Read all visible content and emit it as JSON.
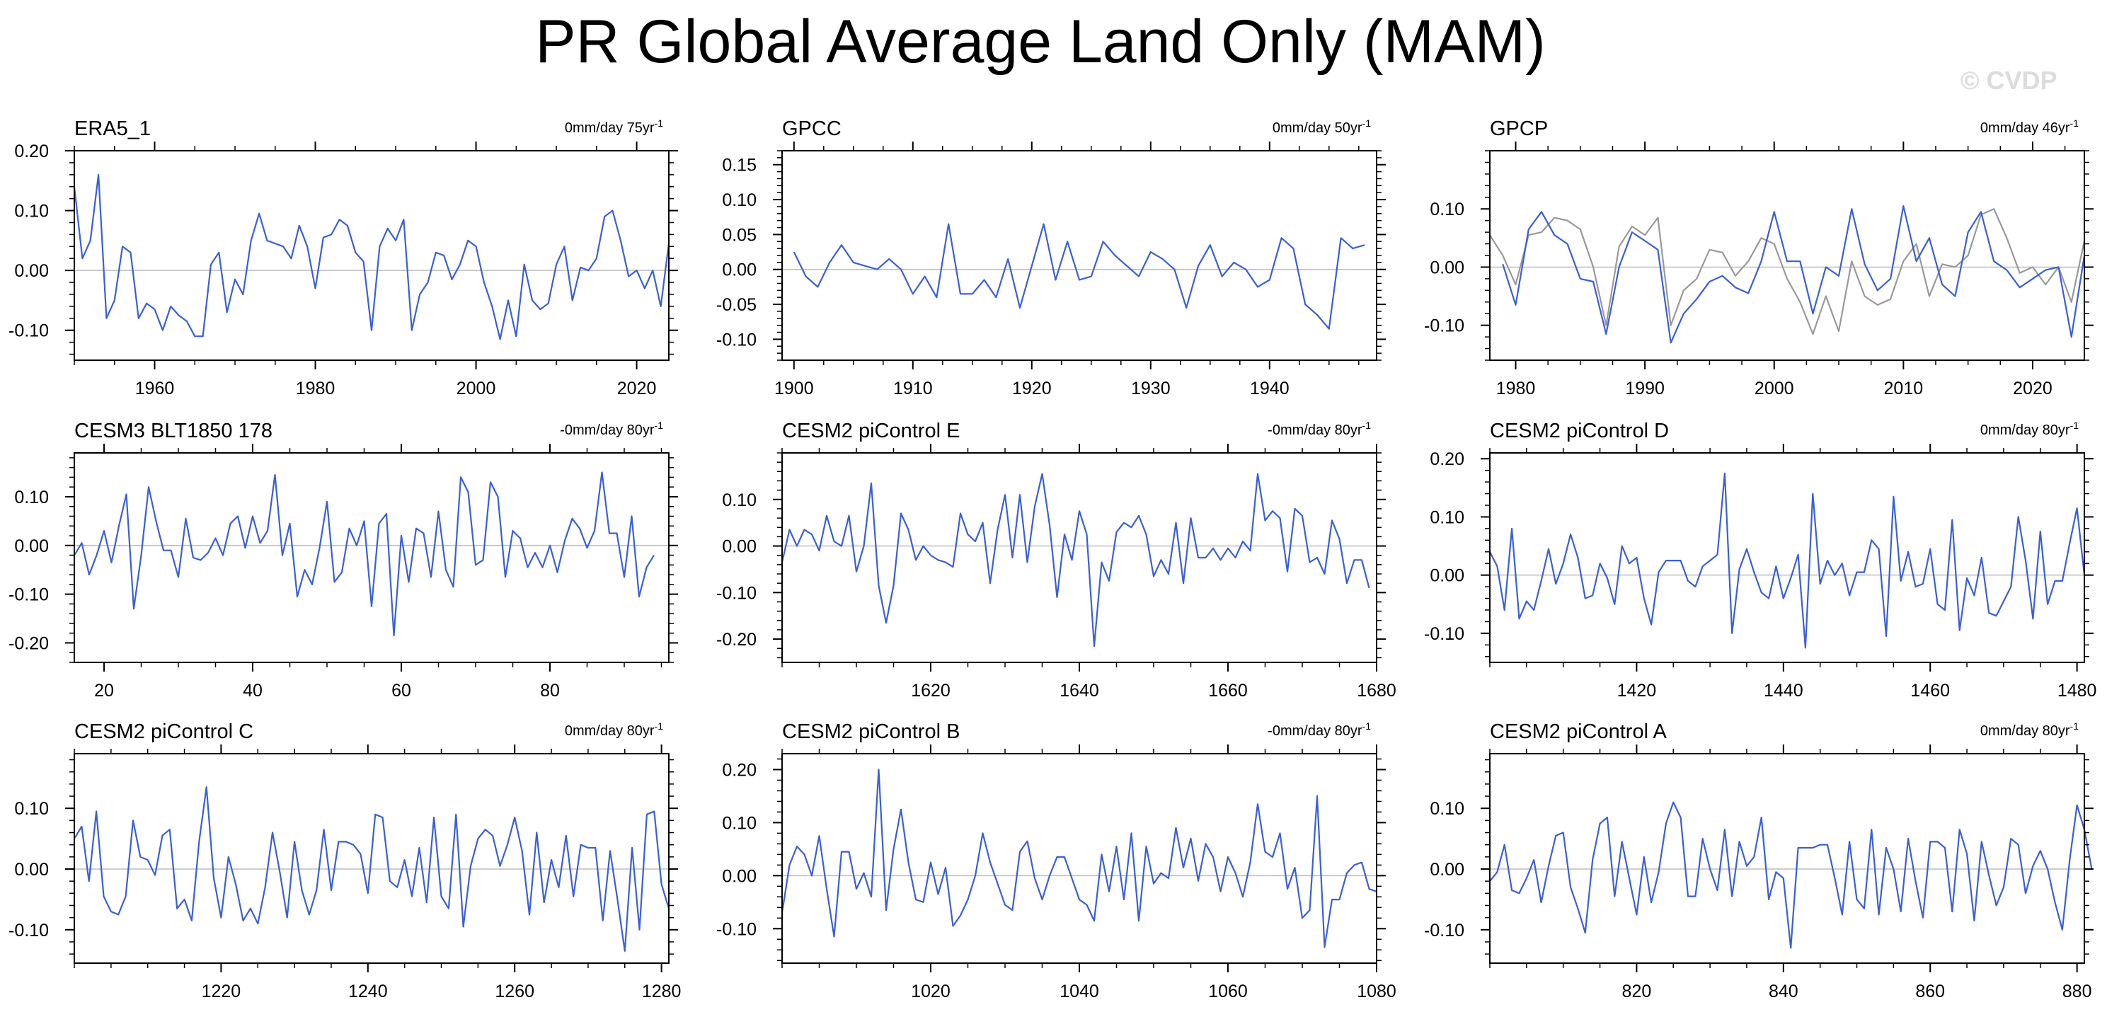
{
  "figure": {
    "title": "PR Global Average Land Only (MAM)",
    "watermark": "© CVDP"
  },
  "colors": {
    "primary_line": "#3a5fd6",
    "secondary_line": "#999999",
    "zero_line": "#bdbdbd",
    "axis": "#000000"
  },
  "chart_data": [
    {
      "type": "line",
      "title": "ERA5_1",
      "trend_label": "0mm/day 75yr",
      "trend_unit_exp": "-1",
      "xlim": [
        1950,
        2024
      ],
      "ylim": [
        -0.15,
        0.2
      ],
      "xticks": [
        1960,
        1980,
        2000,
        2020
      ],
      "yticks": [
        -0.1,
        0.0,
        0.1,
        0.2
      ],
      "ytick_labels": [
        "-0.10",
        "0.00",
        "0.10",
        "0.20"
      ],
      "series": [
        {
          "x_start": 1950,
          "values": [
            0.14,
            0.02,
            0.05,
            0.16,
            -0.08,
            -0.05,
            0.04,
            0.03,
            -0.08,
            -0.055,
            -0.065,
            -0.1,
            -0.06,
            -0.075,
            -0.085,
            -0.11,
            -0.11,
            0.01,
            0.03,
            -0.07,
            -0.015,
            -0.04,
            0.05,
            0.095,
            0.05,
            0.045,
            0.04,
            0.02,
            0.075,
            0.04,
            -0.03,
            0.055,
            0.06,
            0.085,
            0.075,
            0.03,
            0.015,
            -0.1,
            0.04,
            0.07,
            0.05,
            0.085,
            -0.1,
            -0.04,
            -0.02,
            0.03,
            0.025,
            -0.015,
            0.01,
            0.05,
            0.04,
            -0.02,
            -0.06,
            -0.115,
            -0.05,
            -0.11,
            0.01,
            -0.05,
            -0.065,
            -0.055,
            0.01,
            0.04,
            -0.05,
            0.005,
            0.0,
            0.02,
            0.09,
            0.1,
            0.05,
            -0.01,
            0.0,
            -0.03,
            0.0,
            -0.06,
            0.045
          ]
        }
      ]
    },
    {
      "type": "line",
      "title": "GPCC",
      "trend_label": "0mm/day 50yr",
      "trend_unit_exp": "-1",
      "xlim": [
        1899,
        1949
      ],
      "ylim": [
        -0.13,
        0.17
      ],
      "xticks": [
        1900,
        1910,
        1920,
        1930,
        1940
      ],
      "yticks": [
        -0.1,
        -0.05,
        0.0,
        0.05,
        0.1,
        0.15
      ],
      "ytick_labels": [
        "-0.10",
        "-0.05",
        "0.00",
        "0.05",
        "0.10",
        "0.15"
      ],
      "series": [
        {
          "x_start": 1900,
          "values": [
            0.025,
            -0.01,
            -0.025,
            0.01,
            0.035,
            0.01,
            0.005,
            0.0,
            0.015,
            0.0,
            -0.035,
            -0.01,
            -0.04,
            0.065,
            -0.035,
            -0.035,
            -0.015,
            -0.04,
            0.015,
            -0.055,
            0.005,
            0.065,
            -0.015,
            0.04,
            -0.015,
            -0.01,
            0.04,
            0.02,
            0.005,
            -0.01,
            0.025,
            0.015,
            0.0,
            -0.055,
            0.005,
            0.035,
            -0.01,
            0.01,
            0.0,
            -0.025,
            -0.015,
            0.045,
            0.03,
            -0.05,
            -0.065,
            -0.085,
            0.045,
            0.03,
            0.035
          ]
        }
      ]
    },
    {
      "type": "line",
      "title": "GPCP",
      "trend_label": "0mm/day 46yr",
      "trend_unit_exp": "-1",
      "xlim": [
        1978,
        2024
      ],
      "ylim": [
        -0.16,
        0.2
      ],
      "xticks": [
        1980,
        1990,
        2000,
        2010,
        2020
      ],
      "yticks": [
        -0.1,
        0.0,
        0.1
      ],
      "ytick_labels": [
        "-0.10",
        "0.00",
        "0.10"
      ],
      "series": [
        {
          "x_start": 1979,
          "values": [
            0.005,
            -0.065,
            0.065,
            0.095,
            0.055,
            0.04,
            -0.02,
            -0.025,
            -0.115,
            0.0,
            0.06,
            0.045,
            0.03,
            -0.13,
            -0.08,
            -0.055,
            -0.025,
            -0.015,
            -0.035,
            -0.045,
            0.01,
            0.095,
            0.01,
            0.01,
            -0.08,
            0.0,
            -0.015,
            0.1,
            0.005,
            -0.04,
            -0.02,
            0.105,
            0.01,
            0.05,
            -0.03,
            -0.05,
            0.06,
            0.095,
            0.01,
            -0.005,
            -0.035,
            -0.02,
            -0.005,
            0.0,
            -0.12,
            0.02
          ]
        },
        {
          "x_start": 1978,
          "values": [
            0.055,
            0.02,
            -0.03,
            0.055,
            0.06,
            0.085,
            0.08,
            0.065,
            0.0,
            -0.1,
            0.035,
            0.07,
            0.055,
            0.085,
            -0.1,
            -0.04,
            -0.02,
            0.03,
            0.025,
            -0.015,
            0.01,
            0.05,
            0.04,
            -0.02,
            -0.06,
            -0.115,
            -0.05,
            -0.11,
            0.01,
            -0.05,
            -0.065,
            -0.055,
            0.01,
            0.04,
            -0.05,
            0.005,
            0.0,
            0.02,
            0.09,
            0.1,
            0.05,
            -0.01,
            0.0,
            -0.03,
            0.0,
            -0.06,
            0.045
          ]
        }
      ]
    },
    {
      "type": "line",
      "title": "CESM3 BLT1850 178",
      "trend_label": "-0mm/day 80yr",
      "trend_unit_exp": "-1",
      "xlim": [
        16,
        96
      ],
      "ylim": [
        -0.24,
        0.19
      ],
      "xticks": [
        20,
        40,
        60,
        80
      ],
      "yticks": [
        -0.2,
        -0.1,
        0.0,
        0.1
      ],
      "ytick_labels": [
        "-0.20",
        "-0.10",
        "0.00",
        "0.10"
      ],
      "series": [
        {
          "x_start": 16,
          "values": [
            -0.02,
            0.005,
            -0.06,
            -0.02,
            0.03,
            -0.035,
            0.04,
            0.105,
            -0.13,
            -0.02,
            0.12,
            0.05,
            -0.01,
            -0.01,
            -0.065,
            0.055,
            -0.025,
            -0.03,
            -0.015,
            0.015,
            -0.02,
            0.045,
            0.06,
            -0.005,
            0.06,
            0.005,
            0.03,
            0.145,
            -0.02,
            0.045,
            -0.105,
            -0.05,
            -0.08,
            -0.005,
            0.09,
            -0.075,
            -0.055,
            0.035,
            0.0,
            0.05,
            -0.125,
            0.045,
            0.065,
            -0.185,
            0.02,
            -0.075,
            0.035,
            0.025,
            -0.065,
            0.07,
            -0.05,
            -0.085,
            0.14,
            0.11,
            -0.04,
            -0.03,
            0.13,
            0.1,
            -0.065,
            0.03,
            0.015,
            -0.045,
            -0.015,
            -0.045,
            0.0,
            -0.055,
            0.01,
            0.055,
            0.035,
            -0.005,
            0.03,
            0.15,
            0.025,
            0.025,
            -0.065,
            0.06,
            -0.105,
            -0.045,
            -0.02
          ]
        }
      ]
    },
    {
      "type": "line",
      "title": "CESM2 piControl E",
      "trend_label": "-0mm/day 80yr",
      "trend_unit_exp": "-1",
      "xlim": [
        1600,
        1680
      ],
      "ylim": [
        -0.25,
        0.2
      ],
      "xticks": [
        1620,
        1640,
        1660,
        1680
      ],
      "yticks": [
        -0.2,
        -0.1,
        0.0,
        0.1
      ],
      "ytick_labels": [
        "-0.20",
        "-0.10",
        "0.00",
        "0.10"
      ],
      "series": [
        {
          "x_start": 1600,
          "values": [
            -0.035,
            0.035,
            0.0,
            0.035,
            0.025,
            -0.01,
            0.065,
            0.01,
            0.0,
            0.065,
            -0.055,
            0.0,
            0.135,
            -0.085,
            -0.165,
            -0.085,
            0.07,
            0.035,
            -0.03,
            0.0,
            -0.02,
            -0.03,
            -0.035,
            -0.045,
            0.07,
            0.025,
            0.01,
            0.05,
            -0.08,
            0.035,
            0.11,
            -0.025,
            0.11,
            -0.035,
            0.085,
            0.155,
            0.045,
            -0.11,
            0.025,
            -0.03,
            0.075,
            0.025,
            -0.215,
            -0.035,
            -0.075,
            0.03,
            0.05,
            0.04,
            0.065,
            0.025,
            -0.065,
            -0.03,
            -0.06,
            0.05,
            -0.08,
            0.06,
            -0.025,
            -0.025,
            -0.005,
            -0.03,
            -0.005,
            -0.025,
            0.01,
            -0.01,
            0.155,
            0.055,
            0.075,
            0.06,
            -0.055,
            0.08,
            0.065,
            -0.035,
            -0.025,
            -0.06,
            0.055,
            0.015,
            -0.08,
            -0.03,
            -0.03,
            -0.09
          ]
        }
      ]
    },
    {
      "type": "line",
      "title": "CESM2 piControl D",
      "trend_label": "0mm/day 80yr",
      "trend_unit_exp": "-1",
      "xlim": [
        1400,
        1481
      ],
      "ylim": [
        -0.15,
        0.21
      ],
      "xticks": [
        1420,
        1440,
        1460,
        1480
      ],
      "yticks": [
        -0.1,
        0.0,
        0.1,
        0.2
      ],
      "ytick_labels": [
        "-0.10",
        "0.00",
        "0.10",
        "0.20"
      ],
      "series": [
        {
          "x_start": 1400,
          "values": [
            0.04,
            0.015,
            -0.06,
            0.08,
            -0.075,
            -0.045,
            -0.06,
            -0.01,
            0.045,
            -0.015,
            0.02,
            0.07,
            0.03,
            -0.04,
            -0.035,
            0.02,
            -0.005,
            -0.05,
            0.05,
            0.02,
            0.03,
            -0.04,
            -0.085,
            0.005,
            0.025,
            0.025,
            0.025,
            -0.01,
            -0.02,
            0.015,
            0.025,
            0.035,
            0.175,
            -0.1,
            0.01,
            0.045,
            0.005,
            -0.03,
            -0.04,
            0.015,
            -0.04,
            -0.005,
            0.035,
            -0.125,
            0.14,
            -0.015,
            0.025,
            0.0,
            0.02,
            -0.035,
            0.005,
            0.005,
            0.06,
            0.045,
            -0.105,
            0.135,
            -0.01,
            0.04,
            -0.02,
            -0.015,
            0.045,
            -0.05,
            -0.06,
            0.095,
            -0.095,
            -0.005,
            -0.035,
            0.03,
            -0.065,
            -0.07,
            -0.045,
            -0.02,
            0.1,
            0.025,
            -0.075,
            0.075,
            -0.05,
            -0.01,
            -0.01,
            0.055,
            0.115,
            0.0
          ]
        }
      ]
    },
    {
      "type": "line",
      "title": "CESM2 piControl C",
      "trend_label": "0mm/day 80yr",
      "trend_unit_exp": "-1",
      "xlim": [
        1200,
        1281
      ],
      "ylim": [
        -0.155,
        0.19
      ],
      "xticks": [
        1220,
        1240,
        1260,
        1280
      ],
      "yticks": [
        -0.1,
        0.0,
        0.1
      ],
      "ytick_labels": [
        "-0.10",
        "0.00",
        "0.10"
      ],
      "series": [
        {
          "x_start": 1200,
          "values": [
            0.05,
            0.07,
            -0.02,
            0.095,
            -0.045,
            -0.07,
            -0.075,
            -0.045,
            0.08,
            0.02,
            0.015,
            -0.01,
            0.055,
            0.065,
            -0.065,
            -0.05,
            -0.085,
            0.045,
            0.135,
            -0.015,
            -0.08,
            0.02,
            -0.025,
            -0.085,
            -0.065,
            -0.09,
            -0.03,
            0.06,
            -0.005,
            -0.08,
            0.045,
            -0.035,
            -0.075,
            -0.035,
            0.065,
            -0.035,
            0.045,
            0.045,
            0.04,
            0.025,
            -0.04,
            0.09,
            0.085,
            -0.02,
            -0.03,
            0.015,
            -0.045,
            0.035,
            -0.055,
            0.085,
            -0.045,
            -0.065,
            0.09,
            -0.095,
            0.005,
            0.05,
            0.065,
            0.055,
            0.005,
            0.04,
            0.085,
            0.03,
            -0.075,
            0.06,
            -0.055,
            0.015,
            -0.03,
            0.055,
            -0.045,
            0.04,
            0.035,
            0.035,
            -0.085,
            0.03,
            -0.05,
            -0.135,
            0.035,
            -0.1,
            0.09,
            0.095,
            -0.025,
            -0.065
          ]
        }
      ]
    },
    {
      "type": "line",
      "title": "CESM2 piControl B",
      "trend_label": "-0mm/day 80yr",
      "trend_unit_exp": "-1",
      "xlim": [
        1000,
        1080
      ],
      "ylim": [
        -0.165,
        0.23
      ],
      "xticks": [
        1020,
        1040,
        1060,
        1080
      ],
      "yticks": [
        -0.1,
        0.0,
        0.1,
        0.2
      ],
      "ytick_labels": [
        "-0.10",
        "0.00",
        "0.10",
        "0.20"
      ],
      "series": [
        {
          "x_start": 1000,
          "values": [
            -0.07,
            0.02,
            0.055,
            0.04,
            0.0,
            0.075,
            -0.025,
            -0.115,
            0.045,
            0.045,
            -0.025,
            0.005,
            -0.04,
            0.2,
            -0.065,
            0.05,
            0.125,
            0.025,
            -0.045,
            -0.05,
            0.025,
            -0.035,
            0.015,
            -0.095,
            -0.075,
            -0.045,
            -0.0,
            0.08,
            0.025,
            -0.015,
            -0.055,
            -0.065,
            0.045,
            0.065,
            -0.005,
            -0.045,
            0.0,
            0.035,
            0.035,
            -0.005,
            -0.045,
            -0.055,
            -0.085,
            0.04,
            -0.03,
            0.055,
            -0.045,
            0.08,
            -0.085,
            0.055,
            -0.015,
            0.005,
            -0.005,
            0.09,
            0.015,
            0.07,
            -0.01,
            0.06,
            0.035,
            -0.03,
            0.035,
            0.005,
            -0.04,
            0.025,
            0.135,
            0.045,
            0.035,
            0.08,
            -0.025,
            0.015,
            -0.08,
            -0.065,
            0.15,
            -0.135,
            -0.045,
            -0.045,
            0.005,
            0.02,
            0.025,
            -0.025,
            -0.03
          ]
        }
      ]
    },
    {
      "type": "line",
      "title": "CESM2 piControl A",
      "trend_label": "0mm/day 80yr",
      "trend_unit_exp": "-1",
      "xlim": [
        800,
        881
      ],
      "ylim": [
        -0.155,
        0.19
      ],
      "xticks": [
        820,
        840,
        860,
        880
      ],
      "yticks": [
        -0.1,
        0.0,
        0.1
      ],
      "ytick_labels": [
        "-0.10",
        "0.00",
        "0.10"
      ],
      "series": [
        {
          "x_start": 800,
          "values": [
            -0.02,
            -0.005,
            0.04,
            -0.035,
            -0.04,
            -0.015,
            0.015,
            -0.055,
            0.005,
            0.055,
            0.06,
            -0.03,
            -0.065,
            -0.105,
            0.015,
            0.075,
            0.085,
            -0.045,
            0.045,
            -0.015,
            -0.075,
            0.02,
            -0.055,
            -0.005,
            0.075,
            0.11,
            0.085,
            -0.045,
            -0.045,
            0.05,
            0.0,
            -0.035,
            0.065,
            -0.045,
            0.045,
            0.005,
            0.02,
            0.085,
            -0.05,
            -0.005,
            -0.015,
            -0.13,
            0.035,
            0.035,
            0.035,
            0.04,
            0.04,
            -0.015,
            -0.075,
            0.045,
            -0.05,
            -0.065,
            0.065,
            -0.075,
            0.035,
            0.0,
            -0.07,
            0.05,
            -0.02,
            -0.08,
            0.045,
            0.045,
            0.035,
            -0.07,
            0.065,
            0.025,
            -0.085,
            0.045,
            -0.01,
            -0.06,
            -0.03,
            0.05,
            0.04,
            -0.04,
            0.005,
            0.03,
            0.0,
            -0.055,
            -0.1,
            0.015,
            0.105,
            0.065,
            0.0
          ]
        }
      ]
    }
  ]
}
